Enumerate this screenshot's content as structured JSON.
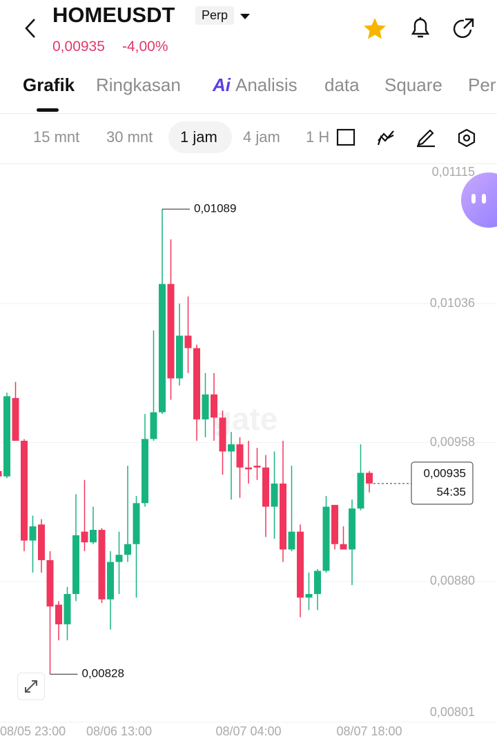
{
  "header": {
    "title": "HOMEUSDT",
    "badge": "Perp",
    "price": "0,00935",
    "change": "-4,00%"
  },
  "tabs": [
    "Grafik",
    "Ringkasan",
    "Analisis",
    "data",
    "Square",
    "Per"
  ],
  "ai_icon": "Ai",
  "intervals": [
    "15 mnt",
    "30 mnt",
    "1 jam",
    "4 jam",
    "1 H"
  ],
  "chart_data": {
    "type": "candlestick",
    "watermark": "gate",
    "categories": [
      "08/05 23:00",
      null,
      null,
      null,
      null,
      null,
      null,
      null,
      null,
      null,
      null,
      null,
      null,
      null,
      "08/06 13:00",
      null,
      null,
      null,
      null,
      null,
      null,
      null,
      null,
      null,
      null,
      null,
      null,
      null,
      null,
      "08/07 04:00",
      null,
      null,
      null,
      null,
      null,
      null,
      null,
      null,
      null,
      null,
      null,
      null,
      null,
      "08/07 18:00"
    ],
    "open": [
      0.00942,
      0.00939,
      0.00983,
      0.00959,
      0.00903,
      0.00912,
      0.00892,
      0.00867,
      0.00856,
      0.00873,
      0.00908,
      0.00902,
      0.00909,
      0.0087,
      0.00891,
      0.00895,
      0.00901,
      0.00924,
      0.0096,
      0.00975,
      0.01047,
      0.00994,
      0.01018,
      0.01011,
      0.00971,
      0.00985,
      0.00972,
      0.00953,
      0.00957,
      0.00944,
      0.00945,
      0.00944,
      0.00922,
      0.00935,
      0.00898,
      0.00908,
      0.00871,
      0.00873,
      0.00886,
      0.00923,
      0.00901,
      0.00898,
      0.00921,
      0.00941
    ],
    "high": [
      0.00945,
      0.00986,
      0.00992,
      0.0096,
      0.00917,
      0.00915,
      0.00897,
      0.00869,
      0.00877,
      0.00929,
      0.00937,
      0.00922,
      0.0091,
      0.00897,
      0.00908,
      0.00945,
      0.00928,
      0.00974,
      0.01021,
      0.01089,
      0.01072,
      0.01036,
      0.0104,
      0.01013,
      0.00997,
      0.00997,
      0.00976,
      0.00964,
      0.00961,
      0.00959,
      0.00955,
      0.00951,
      0.00953,
      0.00959,
      0.00945,
      0.00912,
      0.00885,
      0.00887,
      0.00928,
      0.00923,
      0.00911,
      0.00926,
      0.00957,
      0.00942
    ],
    "low": [
      0.00938,
      0.00938,
      0.00959,
      0.00897,
      0.00885,
      0.00885,
      0.00828,
      0.00847,
      0.00847,
      0.00869,
      0.00897,
      0.00901,
      0.00868,
      0.00853,
      0.00873,
      0.00891,
      0.00871,
      0.00922,
      0.00959,
      0.00974,
      0.00982,
      0.0099,
      0.00997,
      0.00959,
      0.00961,
      0.00959,
      0.0094,
      0.00926,
      0.00927,
      0.00935,
      0.00937,
      0.00905,
      0.00904,
      0.00891,
      0.00897,
      0.0086,
      0.00864,
      0.00864,
      0.00885,
      0.00898,
      0.00898,
      0.00878,
      0.0092,
      0.0093
    ],
    "close": [
      0.00939,
      0.00984,
      0.00959,
      0.00903,
      0.00911,
      0.00892,
      0.00866,
      0.00856,
      0.00873,
      0.00906,
      0.00902,
      0.00909,
      0.0087,
      0.00891,
      0.00895,
      0.00901,
      0.00924,
      0.0096,
      0.00975,
      0.01047,
      0.00994,
      0.01018,
      0.01011,
      0.00971,
      0.00985,
      0.00972,
      0.00953,
      0.00957,
      0.00944,
      0.00943,
      0.00944,
      0.00922,
      0.00935,
      0.00898,
      0.00908,
      0.00871,
      0.00873,
      0.00886,
      0.00922,
      0.00901,
      0.00898,
      0.00921,
      0.00941,
      0.00935
    ],
    "up_color": "#18b47f",
    "down_color": "#f0365c",
    "ylim": [
      0.00801,
      0.01115
    ],
    "yticks": [
      {
        "value": 0.01115,
        "label": "0,01115"
      },
      {
        "value": 0.01036,
        "label": "0,01036"
      },
      {
        "value": 0.00958,
        "label": "0,00958"
      },
      {
        "value": 0.0088,
        "label": "0,00880"
      },
      {
        "value": 0.00801,
        "label": "0,00801"
      }
    ],
    "grid": true,
    "annotations": [
      {
        "value": 0.01089,
        "label": "0,01089"
      },
      {
        "value": 0.00828,
        "label": "0,00828"
      }
    ],
    "last_price": {
      "value": 0.00935,
      "label": "0,00935"
    },
    "countdown": "54:35"
  }
}
